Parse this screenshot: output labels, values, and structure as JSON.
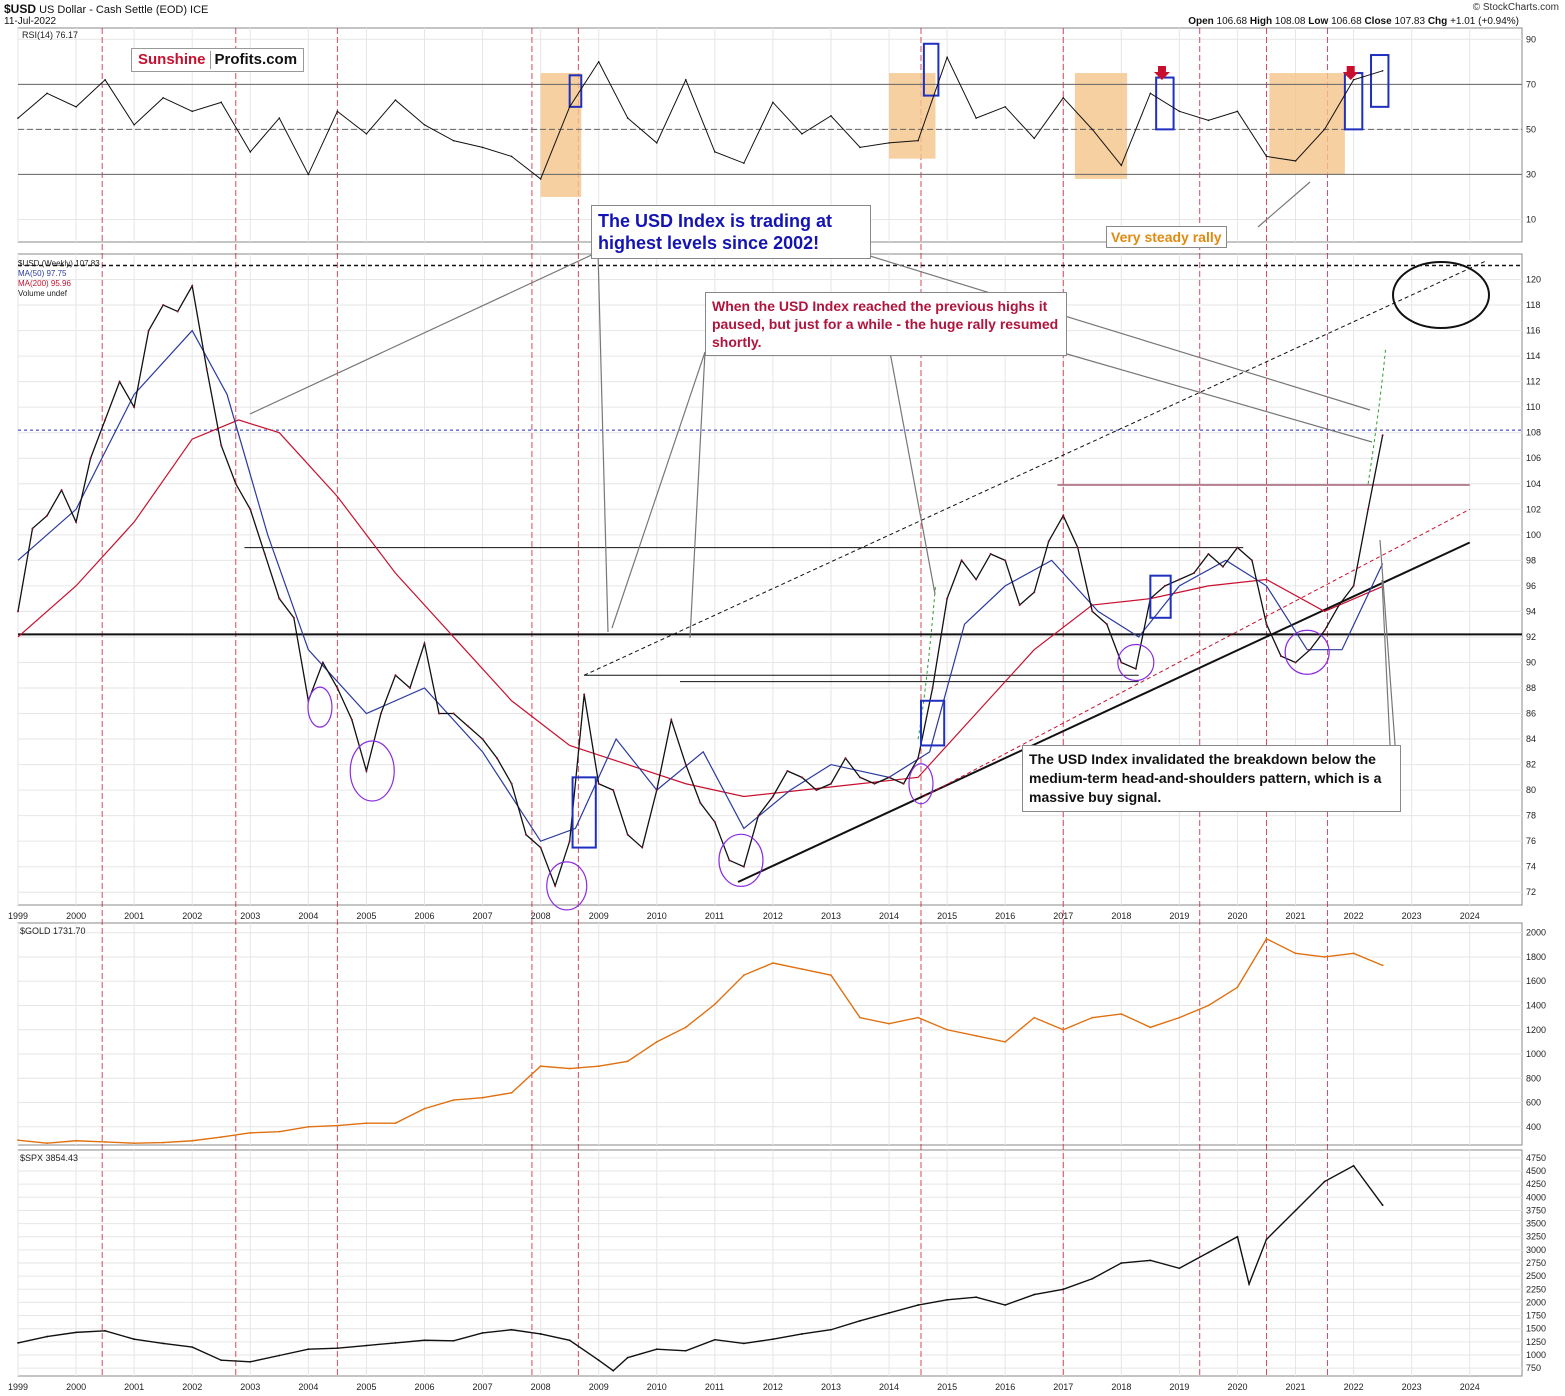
{
  "header": {
    "symbol": "$USD",
    "description": "US Dollar - Cash Settle (EOD) ICE",
    "date": "11-Jul-2022",
    "open_label": "Open",
    "open": "106.68",
    "high_label": "High",
    "high": "108.08",
    "low_label": "Low",
    "low": "106.68",
    "close_label": "Close",
    "close": "107.83",
    "chg_label": "Chg",
    "chg": "+1.01 (+0.94%)",
    "credit": "© StockCharts.com"
  },
  "branding": {
    "sunshine": "Sunshine",
    "profits": "Profits.com"
  },
  "annotations": {
    "highest_levels": "The USD Index is trading at highest levels since 2002!",
    "paused": "When the USD Index reached the previous highs it paused, but just for a while - the huge rally resumed shortly.",
    "invalidated": "The USD Index invalidated the breakdown below the medium-term head-and-shoulders pattern, which is a massive buy signal.",
    "steady_rally": "Very steady rally"
  },
  "colors": {
    "background": "#ffffff",
    "grid": "#e6e6e6",
    "price": "#111111",
    "ma50": "#2b3a9e",
    "ma200": "#c8102e",
    "gold": "#e07010",
    "spx": "#111111",
    "rsi_zone": "#f5c48a",
    "vline": "#c8102e",
    "blue_box": "#1f2fbf",
    "circle": "#8a2be2",
    "annot_red": "#b0143c",
    "annot_blue": "#1414b4",
    "annot_orange": "#e08a10"
  },
  "chart_data": [
    {
      "type": "line",
      "name": "rsi",
      "legend": "RSI(14) 76.17",
      "x_ticks": [],
      "y_ticks": [
        "10",
        "30",
        "50",
        "70",
        "90"
      ],
      "ylim": [
        0,
        95
      ],
      "levels": [
        30,
        50,
        70
      ],
      "x": [
        1999.0,
        1999.5,
        2000.0,
        2000.5,
        2001.0,
        2001.5,
        2002.0,
        2002.5,
        2003.0,
        2003.5,
        2004.0,
        2004.5,
        2005.0,
        2005.5,
        2006.0,
        2006.5,
        2007.0,
        2007.5,
        2008.0,
        2008.5,
        2009.0,
        2009.5,
        2010.0,
        2010.5,
        2011.0,
        2011.5,
        2012.0,
        2012.5,
        2013.0,
        2013.5,
        2014.0,
        2014.5,
        2015.0,
        2015.5,
        2016.0,
        2016.5,
        2017.0,
        2017.5,
        2018.0,
        2018.5,
        2019.0,
        2019.5,
        2020.0,
        2020.5,
        2021.0,
        2021.5,
        2022.0,
        2022.5
      ],
      "y": [
        55,
        66,
        60,
        72,
        52,
        64,
        58,
        62,
        40,
        55,
        30,
        58,
        48,
        63,
        52,
        45,
        42,
        38,
        28,
        60,
        80,
        55,
        44,
        72,
        40,
        35,
        62,
        48,
        56,
        42,
        44,
        45,
        82,
        55,
        60,
        46,
        64,
        50,
        34,
        66,
        58,
        54,
        58,
        38,
        36,
        50,
        72,
        76
      ]
    },
    {
      "type": "line",
      "name": "usd",
      "legend": [
        "$USD (Weekly) 107.83",
        "MA(50) 97.75",
        "MA(200) 95.96",
        "Volume undef"
      ],
      "x_ticks": [
        "1999",
        "2000",
        "2001",
        "2002",
        "2003",
        "2004",
        "2005",
        "2006",
        "2007",
        "2008",
        "2009",
        "2010",
        "2011",
        "2012",
        "2013",
        "2014",
        "2015",
        "2016",
        "2017",
        "2018",
        "2019",
        "2020",
        "2021",
        "2022",
        "2023",
        "2024"
      ],
      "y_ticks": [
        "72",
        "74",
        "76",
        "78",
        "80",
        "82",
        "84",
        "86",
        "88",
        "90",
        "92",
        "94",
        "96",
        "98",
        "100",
        "102",
        "104",
        "106",
        "108",
        "110",
        "112",
        "114",
        "116",
        "118",
        "120"
      ],
      "ylim": [
        71,
        122
      ],
      "x": [
        1999.0,
        1999.25,
        1999.5,
        1999.75,
        2000.0,
        2000.25,
        2000.5,
        2000.75,
        2001.0,
        2001.25,
        2001.5,
        2001.75,
        2002.0,
        2002.25,
        2002.5,
        2002.75,
        2003.0,
        2003.25,
        2003.5,
        2003.75,
        2004.0,
        2004.25,
        2004.5,
        2004.75,
        2005.0,
        2005.25,
        2005.5,
        2005.75,
        2006.0,
        2006.25,
        2006.5,
        2006.75,
        2007.0,
        2007.25,
        2007.5,
        2007.75,
        2008.0,
        2008.25,
        2008.5,
        2008.75,
        2009.0,
        2009.25,
        2009.5,
        2009.75,
        2010.0,
        2010.25,
        2010.5,
        2010.75,
        2011.0,
        2011.25,
        2011.5,
        2011.75,
        2012.0,
        2012.25,
        2012.5,
        2012.75,
        2013.0,
        2013.25,
        2013.5,
        2013.75,
        2014.0,
        2014.25,
        2014.5,
        2014.75,
        2015.0,
        2015.25,
        2015.5,
        2015.75,
        2016.0,
        2016.25,
        2016.5,
        2016.75,
        2017.0,
        2017.25,
        2017.5,
        2017.75,
        2018.0,
        2018.25,
        2018.5,
        2018.75,
        2019.0,
        2019.25,
        2019.5,
        2019.75,
        2020.0,
        2020.25,
        2020.5,
        2020.75,
        2021.0,
        2021.25,
        2021.5,
        2021.75,
        2022.0,
        2022.25,
        2022.5
      ],
      "y": [
        94.0,
        100.5,
        101.5,
        103.5,
        101.0,
        106.0,
        109.0,
        112.0,
        110.0,
        116.0,
        118.0,
        117.5,
        119.5,
        113.0,
        107.0,
        104.0,
        102.0,
        98.5,
        95.0,
        93.5,
        87.0,
        90.0,
        88.0,
        85.5,
        81.5,
        86.0,
        89.0,
        88.0,
        91.5,
        86.0,
        86.0,
        85.0,
        84.0,
        82.5,
        80.5,
        76.5,
        75.5,
        72.5,
        76.0,
        87.5,
        80.5,
        80.0,
        76.5,
        75.5,
        80.0,
        85.5,
        82.0,
        79.0,
        77.5,
        74.5,
        74.0,
        78.0,
        79.5,
        81.5,
        81.0,
        80.0,
        80.5,
        82.5,
        81.0,
        80.5,
        81.0,
        80.5,
        82.5,
        88.0,
        95.0,
        98.0,
        96.5,
        98.5,
        98.0,
        94.5,
        95.5,
        99.5,
        101.5,
        99.0,
        94.0,
        93.0,
        90.0,
        89.5,
        95.0,
        96.0,
        96.5,
        97.0,
        98.5,
        97.5,
        99.0,
        98.0,
        93.0,
        90.5,
        90.0,
        91.0,
        92.5,
        94.5,
        96.0,
        102.0,
        107.8
      ]
    },
    {
      "type": "line",
      "name": "gold",
      "legend": "$GOLD 1731.70",
      "x_ticks": [],
      "y_ticks": [
        "400",
        "600",
        "800",
        "1000",
        "1200",
        "1400",
        "1600",
        "1800",
        "2000"
      ],
      "ylim": [
        250,
        2080
      ],
      "x": [
        1999.0,
        1999.5,
        2000.0,
        2000.5,
        2001.0,
        2001.5,
        2002.0,
        2002.5,
        2003.0,
        2003.5,
        2004.0,
        2004.5,
        2005.0,
        2005.5,
        2006.0,
        2006.5,
        2007.0,
        2007.5,
        2008.0,
        2008.5,
        2009.0,
        2009.5,
        2010.0,
        2010.5,
        2011.0,
        2011.5,
        2012.0,
        2012.5,
        2013.0,
        2013.5,
        2014.0,
        2014.5,
        2015.0,
        2015.5,
        2016.0,
        2016.5,
        2017.0,
        2017.5,
        2018.0,
        2018.5,
        2019.0,
        2019.5,
        2020.0,
        2020.5,
        2021.0,
        2021.5,
        2022.0,
        2022.5
      ],
      "y": [
        290,
        265,
        285,
        275,
        265,
        270,
        285,
        315,
        350,
        360,
        400,
        410,
        430,
        430,
        550,
        620,
        640,
        680,
        900,
        880,
        900,
        940,
        1100,
        1220,
        1410,
        1650,
        1750,
        1700,
        1650,
        1300,
        1250,
        1300,
        1200,
        1150,
        1100,
        1300,
        1200,
        1300,
        1330,
        1220,
        1300,
        1400,
        1550,
        1950,
        1830,
        1800,
        1830,
        1731
      ]
    },
    {
      "type": "line",
      "name": "spx",
      "legend": "$SPX 3854.43",
      "x_ticks": [
        "1999",
        "2000",
        "2001",
        "2002",
        "2003",
        "2004",
        "2005",
        "2006",
        "2007",
        "2008",
        "2009",
        "2010",
        "2011",
        "2012",
        "2013",
        "2014",
        "2015",
        "2016",
        "2017",
        "2018",
        "2019",
        "2020",
        "2021",
        "2022",
        "2023",
        "2024"
      ],
      "y_ticks": [
        "750",
        "1000",
        "1250",
        "1500",
        "1750",
        "2000",
        "2250",
        "2500",
        "2750",
        "3000",
        "3250",
        "3500",
        "3750",
        "4000",
        "4250",
        "4500",
        "4750"
      ],
      "ylim": [
        600,
        4900
      ],
      "x": [
        1999.0,
        1999.5,
        2000.0,
        2000.5,
        2001.0,
        2001.5,
        2002.0,
        2002.5,
        2003.0,
        2003.5,
        2004.0,
        2004.5,
        2005.0,
        2005.5,
        2006.0,
        2006.5,
        2007.0,
        2007.5,
        2008.0,
        2008.5,
        2009.0,
        2009.25,
        2009.5,
        2010.0,
        2010.5,
        2011.0,
        2011.5,
        2012.0,
        2012.5,
        2013.0,
        2013.5,
        2014.0,
        2014.5,
        2015.0,
        2015.5,
        2016.0,
        2016.5,
        2017.0,
        2017.5,
        2018.0,
        2018.5,
        2019.0,
        2019.5,
        2020.0,
        2020.2,
        2020.5,
        2021.0,
        2021.5,
        2022.0,
        2022.5
      ],
      "y": [
        1230,
        1350,
        1430,
        1460,
        1300,
        1220,
        1150,
        900,
        870,
        990,
        1110,
        1130,
        1180,
        1230,
        1280,
        1270,
        1420,
        1480,
        1400,
        1280,
        900,
        700,
        950,
        1110,
        1080,
        1290,
        1220,
        1300,
        1400,
        1480,
        1650,
        1800,
        1950,
        2050,
        2100,
        1950,
        2150,
        2250,
        2450,
        2750,
        2800,
        2650,
        2950,
        3250,
        2350,
        3200,
        3750,
        4300,
        4600,
        3850
      ]
    }
  ]
}
